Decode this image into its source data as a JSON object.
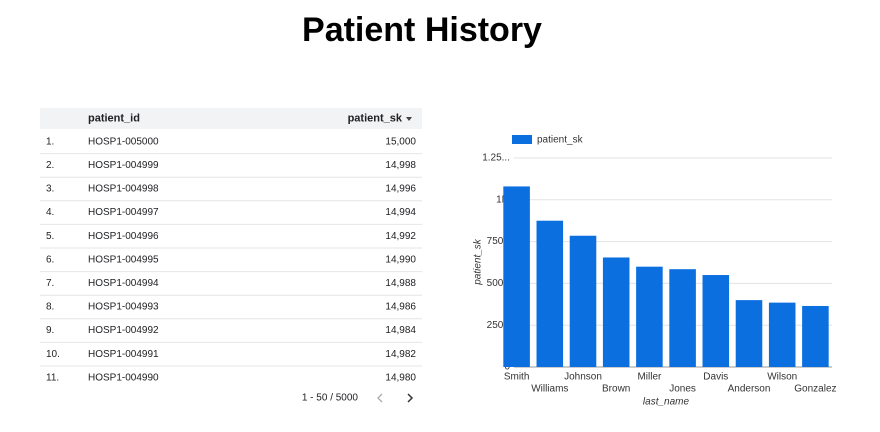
{
  "title": "Patient History",
  "table": {
    "columns": [
      "patient_id",
      "patient_sk"
    ],
    "rows": [
      [
        "1.",
        "HOSP1-005000",
        "15,000"
      ],
      [
        "2.",
        "HOSP1-004999",
        "14,998"
      ],
      [
        "3.",
        "HOSP1-004998",
        "14,996"
      ],
      [
        "4.",
        "HOSP1-004997",
        "14,994"
      ],
      [
        "5.",
        "HOSP1-004996",
        "14,992"
      ],
      [
        "6.",
        "HOSP1-004995",
        "14,990"
      ],
      [
        "7.",
        "HOSP1-004994",
        "14,988"
      ],
      [
        "8.",
        "HOSP1-004993",
        "14,986"
      ],
      [
        "9.",
        "HOSP1-004992",
        "14,984"
      ],
      [
        "10.",
        "HOSP1-004991",
        "14,982"
      ],
      [
        "11.",
        "HOSP1-004990",
        "14,980"
      ]
    ],
    "pagination": "1 - 50 / 5000"
  },
  "chart_data": {
    "type": "bar",
    "x_label": "last_name",
    "y_label": "patient_sk",
    "categories": [
      "Smith",
      "Williams",
      "Johnson",
      "Brown",
      "Miller",
      "Jones",
      "Davis",
      "Anderson",
      "Wilson",
      "Gonzalez"
    ],
    "series": [
      {
        "name": "patient_sk",
        "color": "#0b6fe0",
        "values": [
          1080000,
          875000,
          785000,
          655000,
          600000,
          585000,
          550000,
          400000,
          385000,
          365000
        ]
      }
    ],
    "ylim": [
      0,
      1250000
    ],
    "yticks": [
      0,
      {
        "value": 250000,
        "label": "250K"
      },
      {
        "value": 500000,
        "label": "500K"
      },
      {
        "value": 750000,
        "label": "750K"
      },
      {
        "value": 1000000,
        "label": "1M"
      },
      {
        "value": 1250000,
        "label": "1.25..."
      }
    ],
    "grid": true,
    "legend": "top-left"
  }
}
